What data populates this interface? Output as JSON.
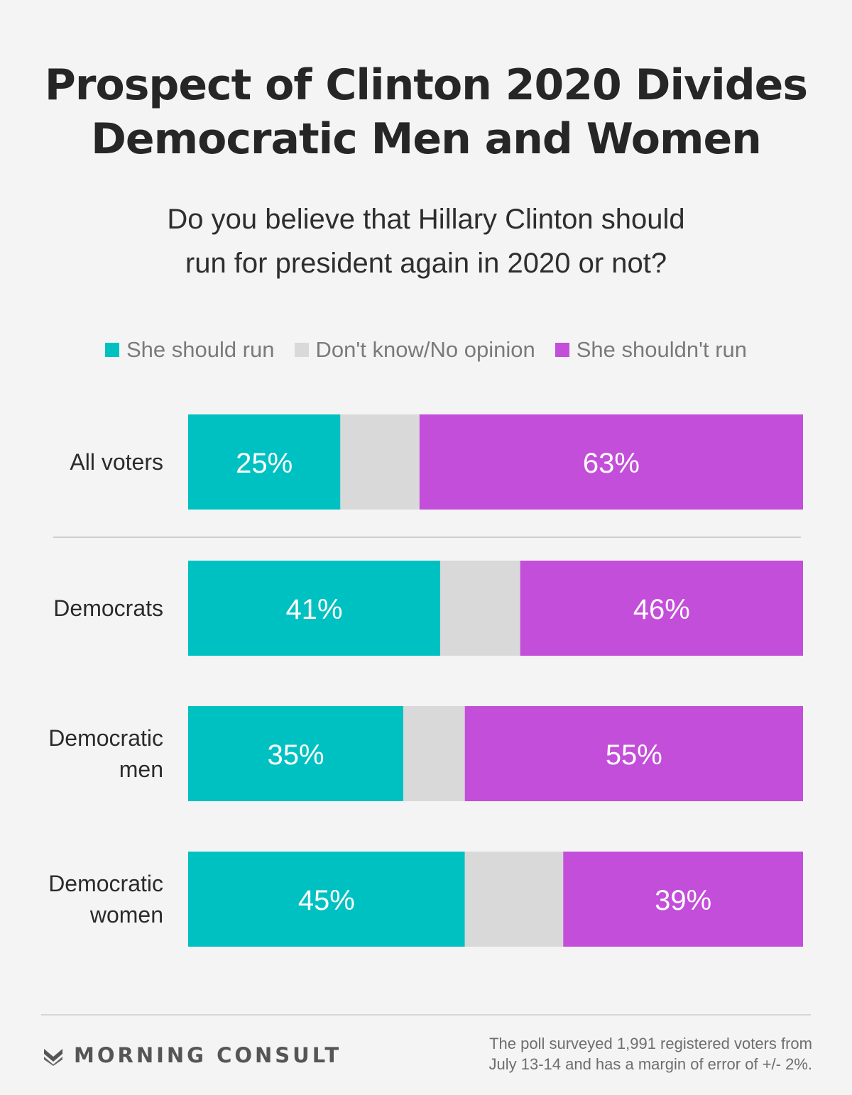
{
  "title": {
    "line1": "Prospect of Clinton 2020 Divides",
    "line2": "Democratic Men and Women"
  },
  "subtitle": {
    "line1": "Do you believe that Hillary Clinton should",
    "line2": "run for president again in 2020 or not?"
  },
  "colors": {
    "should_run": "#00c1c1",
    "dont_know": "#d9d9d9",
    "shouldnt_run": "#c34ed9",
    "divider": "#cfcfcf"
  },
  "chart_data": {
    "type": "bar",
    "orientation": "horizontal",
    "stacked": true,
    "categories": [
      "All voters",
      "Democrats",
      "Democratic men",
      "Democratic women"
    ],
    "category_lines": [
      [
        "All voters"
      ],
      [
        "Democrats"
      ],
      [
        "Democratic",
        "men"
      ],
      [
        "Democratic",
        "women"
      ]
    ],
    "series": [
      {
        "name": "She should run",
        "values": [
          25,
          41,
          35,
          45
        ],
        "labels": [
          "25%",
          "41%",
          "35%",
          "45%"
        ]
      },
      {
        "name": "Don't know/No opinion",
        "values": [
          13,
          13,
          10,
          16
        ],
        "labels": [
          "",
          "",
          "",
          ""
        ]
      },
      {
        "name": "She shouldn't run",
        "values": [
          63,
          46,
          55,
          39
        ],
        "labels": [
          "63%",
          "46%",
          "55%",
          "39%"
        ]
      }
    ],
    "xlim": [
      0,
      100
    ],
    "legend_position": "top",
    "grid": false
  },
  "footer": {
    "brand": "MORNING CONSULT",
    "note_line1": "The poll surveyed 1,991 registered voters from",
    "note_line2": "July 13-14 and has a margin of error of +/- 2%."
  }
}
